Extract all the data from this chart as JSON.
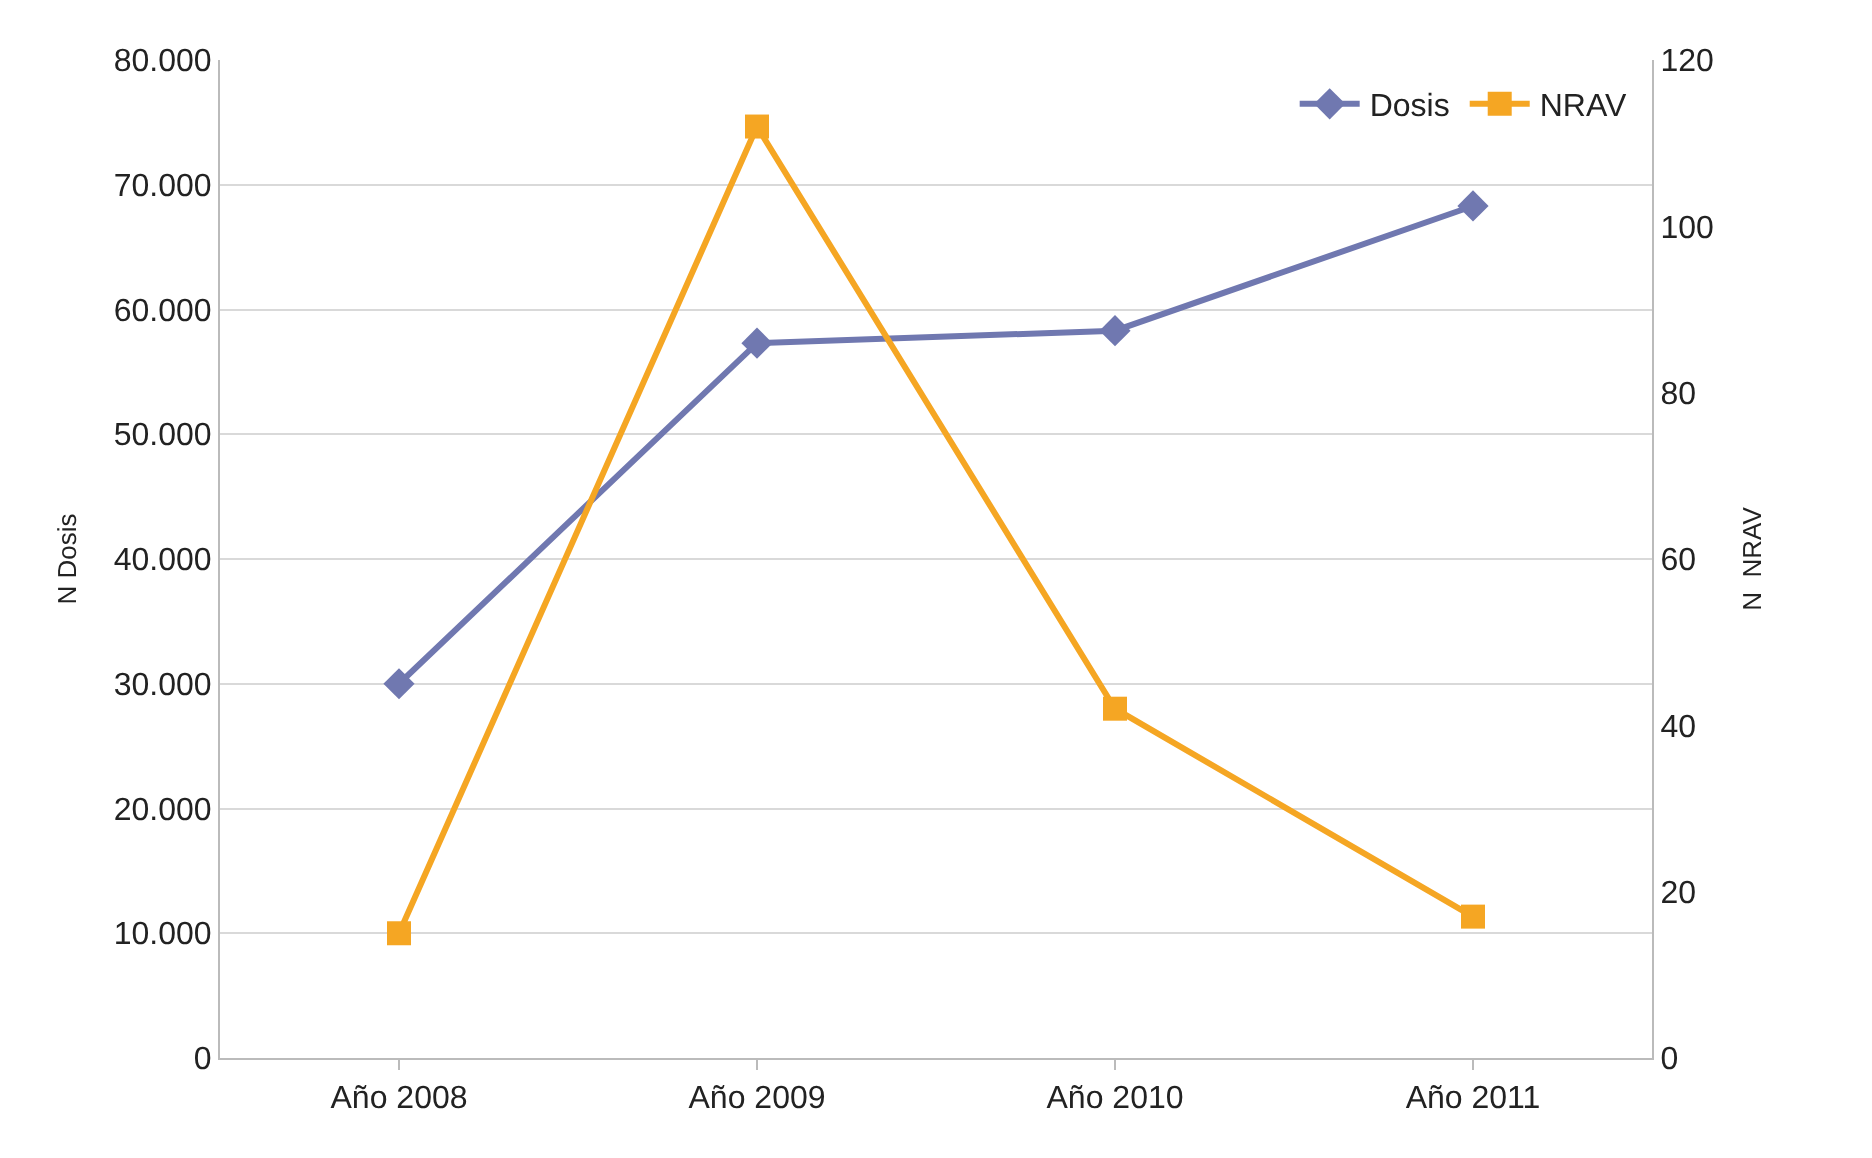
{
  "chart_data": {
    "type": "line",
    "categories": [
      "Año 2008",
      "Año 2009",
      "Año 2010",
      "Año 2011"
    ],
    "ylabel": "N Dosis",
    "y2label": "N  NRAV",
    "series": [
      {
        "name": "Dosis",
        "color": "#7078b0",
        "values": [
          30000,
          57300,
          58300,
          68300
        ],
        "marker": "diamond"
      },
      {
        "name": "NRAV",
        "color": "#f5a623",
        "values": [
          15,
          112,
          42,
          17
        ],
        "axis": "y2",
        "marker": "square"
      }
    ],
    "ylim": [
      0,
      80000
    ],
    "yticks": [
      {
        "value": 0,
        "label": "0"
      },
      {
        "value": 10000,
        "label": "10.000"
      },
      {
        "value": 20000,
        "label": "20.000"
      },
      {
        "value": 30000,
        "label": "30.000"
      },
      {
        "value": 40000,
        "label": "40.000"
      },
      {
        "value": 50000,
        "label": "50.000"
      },
      {
        "value": 60000,
        "label": "60.000"
      },
      {
        "value": 70000,
        "label": "70.000"
      },
      {
        "value": 80000,
        "label": "80.000"
      }
    ],
    "y2lim": [
      0,
      120
    ],
    "y2ticks": [
      0,
      20,
      40,
      60,
      80,
      100,
      120
    ],
    "grid": "y",
    "legend": "top right",
    "line_style": "solid"
  }
}
